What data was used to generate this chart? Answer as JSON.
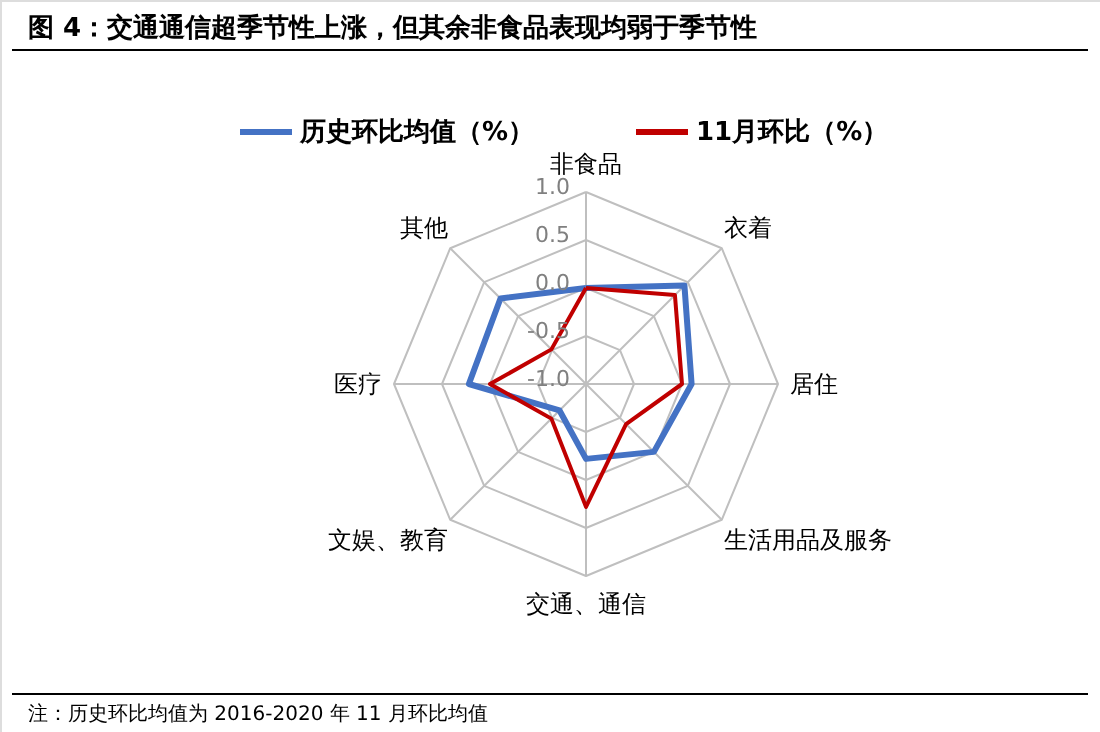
{
  "chart_data": {
    "type": "radar",
    "title": "图 4：交通通信超季节性上涨，但其余非食品表现均弱于季节性",
    "categories": [
      "非食品",
      "衣着",
      "居住",
      "生活用品及服务",
      "交通、通信",
      "文娱、教育",
      "医疗",
      "其他"
    ],
    "series": [
      {
        "name": "历史环比均值（%）",
        "color": "#4472c4",
        "values": [
          0.0,
          0.45,
          0.1,
          0.0,
          -0.22,
          -0.61,
          0.22,
          0.26
        ]
      },
      {
        "name": "11月环比（%）",
        "color": "#c00000",
        "values": [
          0.0,
          0.31,
          0.0,
          -0.41,
          0.28,
          -0.49,
          0.0,
          -0.49
        ]
      }
    ],
    "ylim": [
      -1.0,
      1.0
    ],
    "yticks": [
      {
        "value": -1.0,
        "label": "-1.0"
      },
      {
        "value": -0.5,
        "label": "-0.5"
      },
      {
        "value": 0.0,
        "label": "0.0"
      },
      {
        "value": 0.5,
        "label": "0.5"
      },
      {
        "value": 1.0,
        "label": "1.0"
      }
    ],
    "grid": true,
    "legend": "top",
    "marker": "none",
    "line_style": "solid",
    "annotations": [
      "注：历史环比均值为 2016-2020 年 11 月环比均值"
    ]
  }
}
